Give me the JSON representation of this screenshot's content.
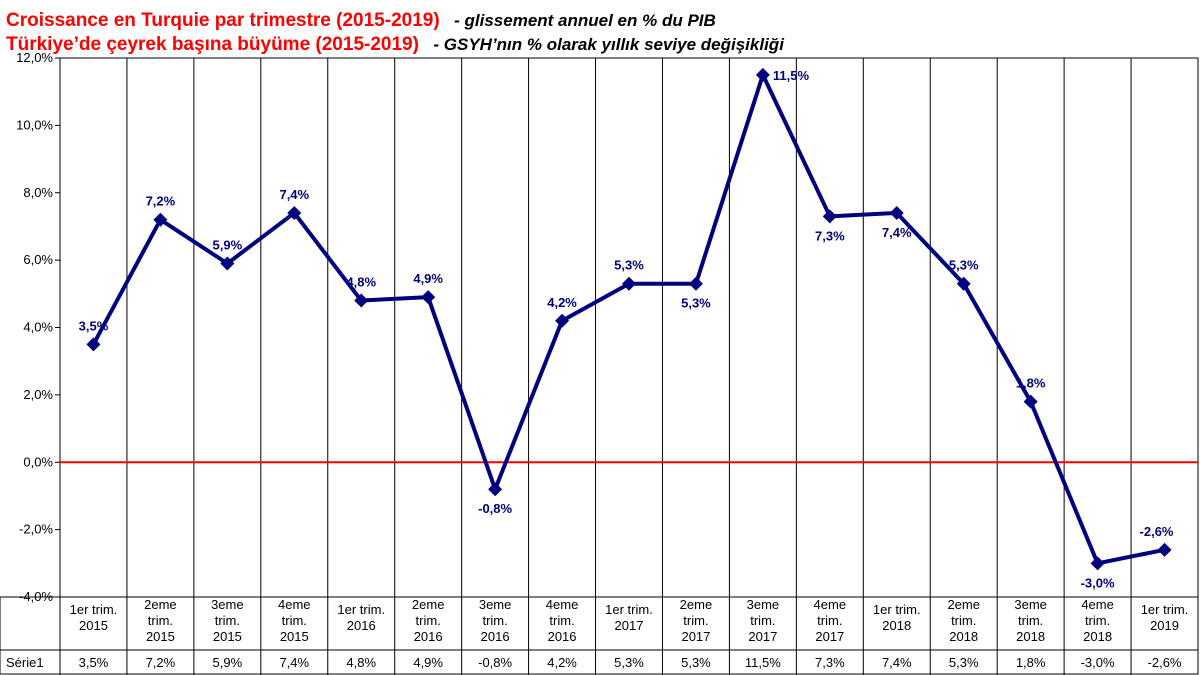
{
  "titles": {
    "line1_red": "Croissance  en Turquie par trimestre (2015-2019)",
    "line1_black": "- glissement annuel en % du PIB",
    "line2_red": "Türkiye’de çeyrek başına büyüme (2015-2019)",
    "line2_black": "- GSYH’nın % olarak yıllık seviye değişikliği"
  },
  "colors": {
    "series": "#000080",
    "zero_line": "#ff0000",
    "title_red": "#ff0000",
    "grid": "#000000"
  },
  "chart_data": {
    "type": "line",
    "title": "Croissance  en Turquie par trimestre (2015-2019)",
    "ylim": [
      -4,
      12
    ],
    "ytick_step": 2,
    "yticks": [
      "12,0%",
      "10,0%",
      "8,0%",
      "6,0%",
      "4,0%",
      "2,0%",
      "0,0%",
      "-2,0%",
      "-4,0%"
    ],
    "grid": "vertical lines between categories",
    "zero_line": true,
    "marker": "diamond",
    "categories": [
      [
        "1er trim.",
        "2015"
      ],
      [
        "2eme",
        "trim.",
        "2015"
      ],
      [
        "3eme",
        "trim.",
        "2015"
      ],
      [
        "4eme",
        "trim.",
        "2015"
      ],
      [
        "1er trim.",
        "2016"
      ],
      [
        "2eme",
        "trim.",
        "2016"
      ],
      [
        "3eme",
        "trim.",
        "2016"
      ],
      [
        "4eme",
        "trim.",
        "2016"
      ],
      [
        "1er trim.",
        "2017"
      ],
      [
        "2eme",
        "trim.",
        "2017"
      ],
      [
        "3eme",
        "trim.",
        "2017"
      ],
      [
        "4eme",
        "trim.",
        "2017"
      ],
      [
        "1er trim.",
        "2018"
      ],
      [
        "2eme",
        "trim.",
        "2018"
      ],
      [
        "3eme",
        "trim.",
        "2018"
      ],
      [
        "4eme",
        "trim.",
        "2018"
      ],
      [
        "1er trim.",
        "2019"
      ]
    ],
    "series": [
      {
        "name": "Série1",
        "values": [
          3.5,
          7.2,
          5.9,
          7.4,
          4.8,
          4.9,
          -0.8,
          4.2,
          5.3,
          5.3,
          11.5,
          7.3,
          7.4,
          5.3,
          1.8,
          -3.0,
          -2.6
        ],
        "labels": [
          "3,5%",
          "7,2%",
          "5,9%",
          "7,4%",
          "4,8%",
          "4,9%",
          "-0,8%",
          "4,2%",
          "5,3%",
          "5,3%",
          "11,5%",
          "7,3%",
          "7,4%",
          "5,3%",
          "1,8%",
          "-3,0%",
          "-2,6%"
        ],
        "label_positions": [
          "above",
          "above",
          "above",
          "above",
          "above",
          "above",
          "below",
          "above",
          "above",
          "below",
          "right",
          "below",
          "below",
          "above",
          "above",
          "below",
          "above"
        ]
      }
    ]
  }
}
